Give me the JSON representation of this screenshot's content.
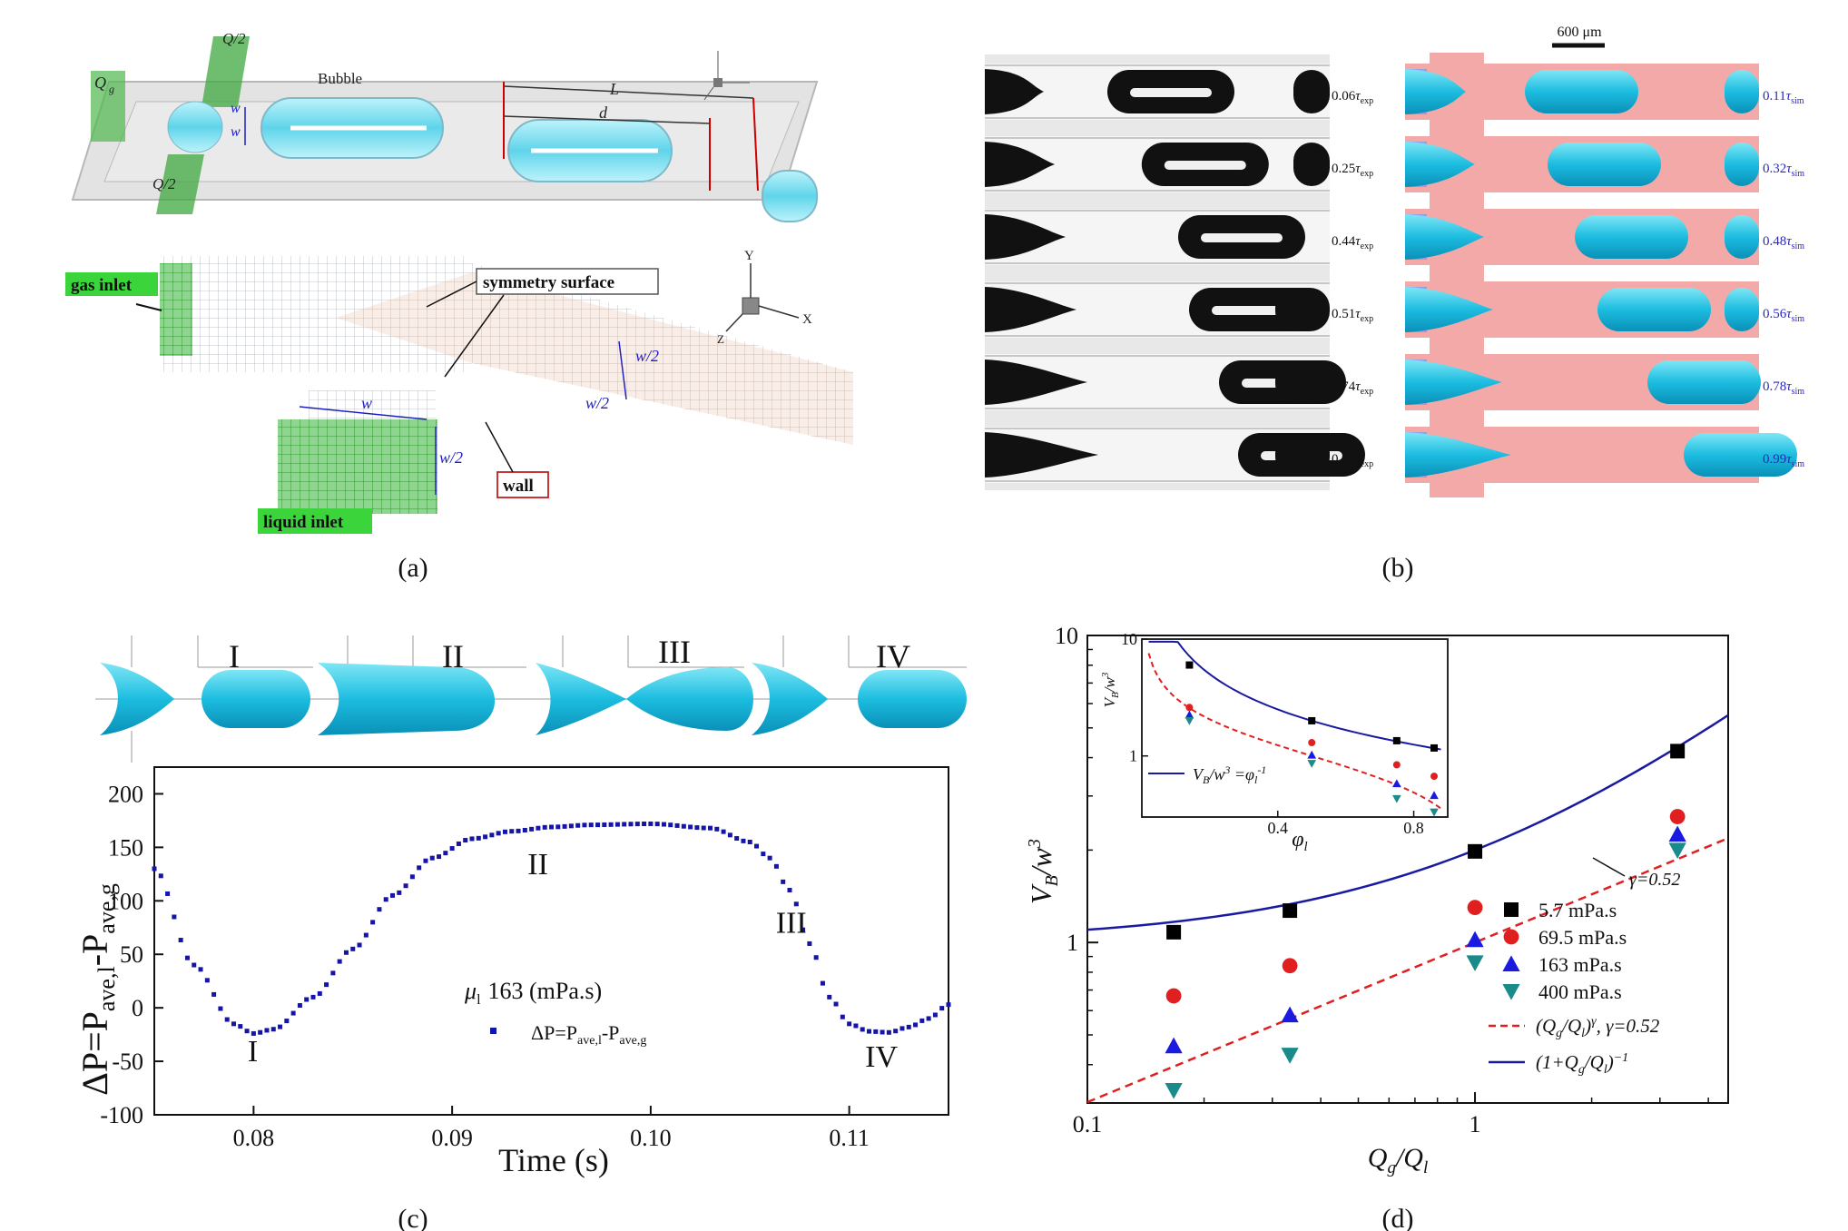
{
  "panels": {
    "a": {
      "caption": "(a)",
      "top_labels": {
        "qg": "Q",
        "qg_sub": "g",
        "q2_top": "Q/2",
        "q2_bottom": "Q/2",
        "w1": "w",
        "w2": "w",
        "bubble": "Bubble",
        "L": "L",
        "d": "d"
      },
      "mesh_labels": {
        "gas_inlet": "gas inlet",
        "symmetry": "symmetry surface",
        "w": "w",
        "w2a": "w/2",
        "w2b": "w/2",
        "w2c": "w/2",
        "wall": "wall",
        "liquid_inlet": "liquid inlet",
        "axis_y": "Y",
        "axis_x": "X",
        "axis_z": "Z"
      }
    },
    "b": {
      "caption": "(b)",
      "scale_bar": "600 μm",
      "exp_times": [
        "0.06",
        "0.25",
        "0.44",
        "0.51",
        "0.74",
        "0.99"
      ],
      "exp_suffix": "τ",
      "exp_sub": "exp",
      "sim_times": [
        "0.11",
        "0.32",
        "0.48",
        "0.56",
        "0.78",
        "0.99"
      ],
      "sim_suffix": "τ",
      "sim_sub": "sim",
      "colors": {
        "channel": "#f4a9a9",
        "bubble": "#33c8e8",
        "inlet": "#9b9be8",
        "exp_bubble": "#111111"
      }
    },
    "c": {
      "caption": "(c)",
      "stage_labels": [
        "I",
        "II",
        "III",
        "IV"
      ],
      "legend": {
        "mu": "μ",
        "mu_sub": "l",
        "mu_value": "163 (mPa.s)",
        "series": "ΔP=P",
        "series_sub1": "ave,l",
        "series_mid": "-P",
        "series_sub2": "ave,g"
      },
      "ylabel": {
        "a": "ΔP=P",
        "sub1": "ave,l",
        "b": "-P",
        "sub2": "ave,g"
      },
      "xlabel": "Time (s)",
      "annotations": [
        "I",
        "II",
        "III",
        "IV"
      ],
      "chart_data": {
        "type": "scatter",
        "x_ticks": [
          "0.08",
          "0.09",
          "0.10",
          "0.11"
        ],
        "y_ticks": [
          "200",
          "150",
          "100",
          "50",
          "0",
          "-50",
          "-100"
        ],
        "xlim": [
          0.075,
          0.115
        ],
        "ylim": [
          -100,
          225
        ],
        "series": [
          {
            "name": "ΔP=Pave,l-Pave,g",
            "x": [
              0.075,
              0.077,
              0.079,
              0.08,
              0.081,
              0.083,
              0.085,
              0.087,
              0.089,
              0.091,
              0.093,
              0.095,
              0.097,
              0.1,
              0.103,
              0.105,
              0.106,
              0.107,
              0.108,
              0.109,
              0.11,
              0.111,
              0.112,
              0.113,
              0.114,
              0.115
            ],
            "y": [
              130,
              40,
              -15,
              -24,
              -20,
              10,
              55,
              105,
              140,
              158,
              165,
              169,
              171,
              172,
              168,
              155,
              140,
              110,
              60,
              10,
              -15,
              -22,
              -23,
              -18,
              -10,
              3
            ]
          }
        ],
        "color": "#1414a8"
      }
    },
    "d": {
      "caption": "(d)",
      "ylabel": {
        "a": "V",
        "sub": "B",
        "b": "/w",
        "sup": "3"
      },
      "xlabel": {
        "a": "Q",
        "sub1": "g",
        "b": "/Q",
        "sub2": "l"
      },
      "gamma_note": "γ=0.52",
      "chart_data": {
        "type": "scatter",
        "xscale": "log",
        "yscale": "log",
        "x_ticks": [
          "0.1",
          "1"
        ],
        "y_ticks": [
          "1",
          "10"
        ],
        "xlim": [
          0.1,
          4.5
        ],
        "ylim": [
          0.3,
          10
        ],
        "x": [
          0.167,
          0.333,
          1.0,
          3.33
        ],
        "series": [
          {
            "name": "5.7   mPa.s",
            "marker": "square",
            "color": "#000000",
            "values": [
              1.08,
              1.27,
              1.98,
              4.2
            ]
          },
          {
            "name": "69.5  mPa.s",
            "marker": "circle",
            "color": "#e02020",
            "values": [
              0.67,
              0.84,
              1.3,
              2.57
            ]
          },
          {
            "name": "163   mPa.s",
            "marker": "triangle-up",
            "color": "#1a1ae0",
            "values": [
              0.46,
              0.58,
              1.02,
              2.25
            ]
          },
          {
            "name": "400   mPa.s",
            "marker": "triangle-down",
            "color": "#1a8a8a",
            "values": [
              0.33,
              0.43,
              0.86,
              2.0
            ]
          }
        ],
        "lines": [
          {
            "name": "(Qg/Ql)γ, γ=0.52",
            "label_a": "(Q",
            "label_sub1": "g",
            "label_b": "/Q",
            "label_sub2": "l",
            "label_c": ")",
            "label_sup": "γ",
            "label_d": ", γ=0.52",
            "style": "dashed",
            "color": "#e02020"
          },
          {
            "name": "(1+Qg/Ql)-1",
            "label_a": "(1+Q",
            "label_sub1": "g",
            "label_b": "/Q",
            "label_sub2": "l",
            "label_c": ")",
            "label_sup": "−1",
            "style": "solid",
            "color": "#1a1aa0"
          }
        ]
      },
      "inset": {
        "chart_data": {
          "type": "scatter",
          "yscale": "log",
          "x_ticks": [
            "0.4",
            "0.8"
          ],
          "y_ticks": [
            "1",
            "10"
          ],
          "xlim": [
            0.0,
            0.9
          ],
          "ylim": [
            0.3,
            10
          ],
          "x": [
            0.14,
            0.5,
            0.75,
            0.86
          ],
          "series": [
            {
              "marker": "square",
              "color": "#000000",
              "values": [
                6.0,
                2.0,
                1.35,
                1.17
              ]
            },
            {
              "marker": "circle",
              "color": "#e02020",
              "values": [
                2.6,
                1.3,
                0.84,
                0.67
              ]
            },
            {
              "marker": "triangle-up",
              "color": "#1a1ae0",
              "values": [
                2.25,
                1.02,
                0.58,
                0.46
              ]
            },
            {
              "marker": "triangle-down",
              "color": "#1a8a8a",
              "values": [
                2.0,
                0.86,
                0.43,
                0.33
              ]
            }
          ]
        },
        "ylabel": {
          "a": "V",
          "sub": "B",
          "b": "/w",
          "sup": "3"
        },
        "xlabel": {
          "a": "φ",
          "sub": "l"
        },
        "legend": {
          "a": "V",
          "sub": "B",
          "b": "/w",
          "sup": "3",
          "c": " =φ",
          "sub2": "l",
          "sup2": "-1"
        }
      }
    }
  }
}
